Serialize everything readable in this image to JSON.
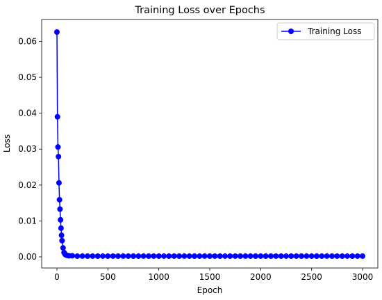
{
  "chart_data": {
    "type": "line",
    "title": "Training Loss over Epochs",
    "xlabel": "Epoch",
    "ylabel": "Loss",
    "xlim": [
      -150,
      3150
    ],
    "ylim": [
      -0.0031,
      0.0661
    ],
    "xticks": [
      0,
      500,
      1000,
      1500,
      2000,
      2500,
      3000
    ],
    "xtick_labels": [
      "0",
      "500",
      "1000",
      "1500",
      "2000",
      "2500",
      "3000"
    ],
    "yticks": [
      0.0,
      0.01,
      0.02,
      0.03,
      0.04,
      0.05,
      0.06
    ],
    "ytick_labels": [
      "0.00",
      "0.01",
      "0.02",
      "0.03",
      "0.04",
      "0.05",
      "0.06"
    ],
    "legend_position": "top-right",
    "grid": false,
    "series": [
      {
        "name": "Training Loss",
        "color": "#0000ff",
        "marker": "circle",
        "x": [
          0,
          5,
          10,
          15,
          20,
          25,
          30,
          35,
          40,
          45,
          50,
          60,
          70,
          80,
          90,
          100,
          120,
          150,
          200,
          250,
          300,
          350,
          400,
          450,
          500,
          550,
          600,
          650,
          700,
          750,
          800,
          850,
          900,
          950,
          1000,
          1050,
          1100,
          1150,
          1200,
          1250,
          1300,
          1350,
          1400,
          1450,
          1500,
          1550,
          1600,
          1650,
          1700,
          1750,
          1800,
          1850,
          1900,
          1950,
          2000,
          2050,
          2100,
          2150,
          2200,
          2250,
          2300,
          2350,
          2400,
          2450,
          2500,
          2550,
          2600,
          2650,
          2700,
          2750,
          2800,
          2850,
          2900,
          2950,
          3000
        ],
        "y": [
          0.0626,
          0.039,
          0.0306,
          0.0279,
          0.0206,
          0.0159,
          0.0133,
          0.0103,
          0.008,
          0.006,
          0.0045,
          0.0025,
          0.0012,
          0.0007,
          0.0005,
          0.0004,
          0.0003,
          0.0003,
          0.0002,
          0.0002,
          0.0002,
          0.0002,
          0.0002,
          0.0002,
          0.0002,
          0.0002,
          0.0002,
          0.0002,
          0.0002,
          0.0002,
          0.0002,
          0.0002,
          0.0002,
          0.0002,
          0.0002,
          0.0002,
          0.0002,
          0.0002,
          0.0002,
          0.0002,
          0.0002,
          0.0002,
          0.0002,
          0.0002,
          0.0002,
          0.0002,
          0.0002,
          0.0002,
          0.0002,
          0.0002,
          0.0002,
          0.0002,
          0.0002,
          0.0002,
          0.0002,
          0.0002,
          0.0002,
          0.0002,
          0.0002,
          0.0002,
          0.0002,
          0.0002,
          0.0002,
          0.0002,
          0.0002,
          0.0002,
          0.0002,
          0.0002,
          0.0002,
          0.0002,
          0.0002,
          0.0002,
          0.0002,
          0.0002,
          0.0002
        ]
      }
    ]
  }
}
